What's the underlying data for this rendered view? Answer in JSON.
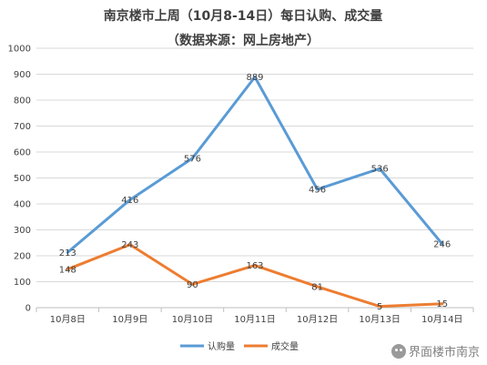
{
  "chart_data": {
    "type": "line",
    "title": "南京楼市上周（10月8-14日）每日认购、成交量",
    "subtitle": "（数据来源：网上房地产）",
    "categories": [
      "10月8日",
      "10月9日",
      "10月10日",
      "10月11日",
      "10月12日",
      "10月13日",
      "10月14日"
    ],
    "ylim": [
      0,
      1000
    ],
    "yticks": [
      0,
      100,
      200,
      300,
      400,
      500,
      600,
      700,
      800,
      900,
      1000
    ],
    "grid": true,
    "legend": "bottom",
    "series": [
      {
        "name": "认购量",
        "color": "#5a9bd5",
        "values": [
          213,
          416,
          576,
          889,
          456,
          536,
          246
        ]
      },
      {
        "name": "成交量",
        "color": "#ed7d31",
        "values": [
          148,
          243,
          90,
          163,
          81,
          5,
          15
        ]
      }
    ]
  },
  "watermark": {
    "text": "界面楼市南京",
    "icon": "wechat-icon"
  }
}
